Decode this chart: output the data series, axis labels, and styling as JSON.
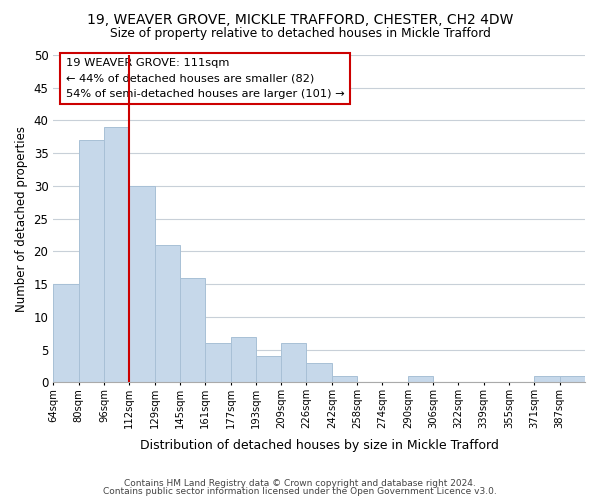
{
  "title": "19, WEAVER GROVE, MICKLE TRAFFORD, CHESTER, CH2 4DW",
  "subtitle": "Size of property relative to detached houses in Mickle Trafford",
  "xlabel": "Distribution of detached houses by size in Mickle Trafford",
  "ylabel": "Number of detached properties",
  "bin_labels": [
    "64sqm",
    "80sqm",
    "96sqm",
    "112sqm",
    "129sqm",
    "145sqm",
    "161sqm",
    "177sqm",
    "193sqm",
    "209sqm",
    "226sqm",
    "242sqm",
    "258sqm",
    "274sqm",
    "290sqm",
    "306sqm",
    "322sqm",
    "339sqm",
    "355sqm",
    "371sqm",
    "387sqm"
  ],
  "bar_values": [
    15,
    37,
    39,
    30,
    21,
    16,
    6,
    7,
    4,
    6,
    3,
    1,
    0,
    0,
    1,
    0,
    0,
    0,
    0,
    1,
    1
  ],
  "bar_color": "#c6d8ea",
  "bar_edge_color": "#a8c0d6",
  "vline_x": 3,
  "vline_color": "#cc0000",
  "annotation_line1": "19 WEAVER GROVE: 111sqm",
  "annotation_line2": "← 44% of detached houses are smaller (82)",
  "annotation_line3": "54% of semi-detached houses are larger (101) →",
  "annotation_box_color": "#ffffff",
  "annotation_box_edge": "#cc0000",
  "ylim": [
    0,
    50
  ],
  "yticks": [
    0,
    5,
    10,
    15,
    20,
    25,
    30,
    35,
    40,
    45,
    50
  ],
  "grid_color": "#c8d0d8",
  "footer_line1": "Contains HM Land Registry data © Crown copyright and database right 2024.",
  "footer_line2": "Contains public sector information licensed under the Open Government Licence v3.0.",
  "bg_color": "#ffffff",
  "plot_bg_color": "#ffffff"
}
